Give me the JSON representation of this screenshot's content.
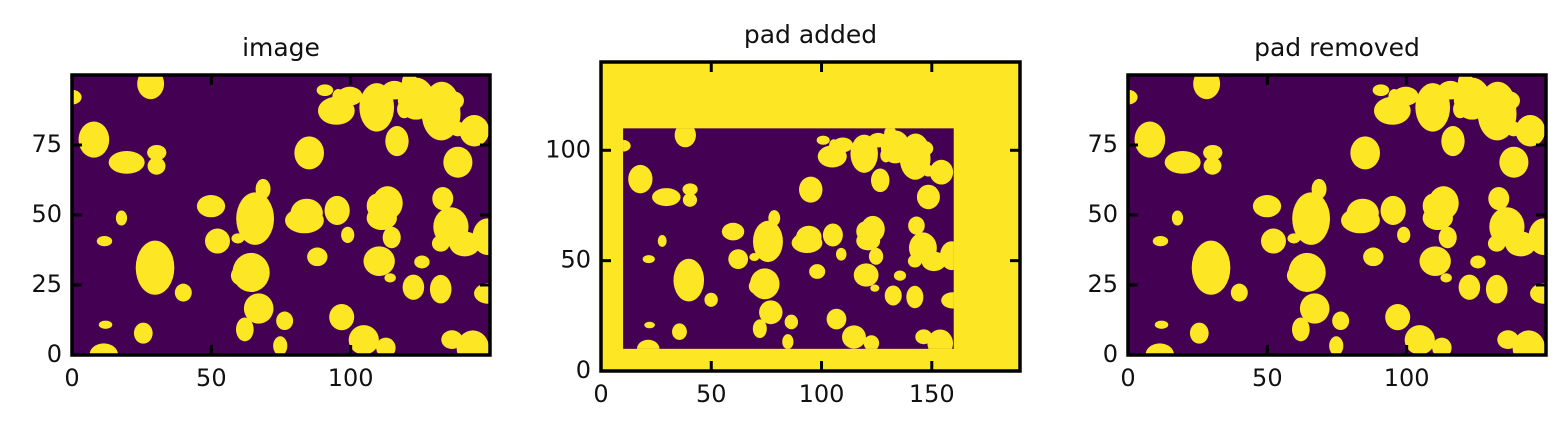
{
  "chart_data": [
    {
      "type": "image",
      "title": "image",
      "xlim": [
        0,
        150
      ],
      "ylim": [
        0,
        100
      ],
      "xticks": [
        0,
        50,
        100
      ],
      "yticks": [
        0,
        25,
        50,
        75
      ]
    },
    {
      "type": "image",
      "title": "pad added",
      "xlim": [
        0,
        190
      ],
      "ylim": [
        0,
        140
      ],
      "xticks": [
        0,
        50,
        100,
        150
      ],
      "yticks": [
        0,
        50,
        100
      ]
    },
    {
      "type": "image",
      "title": "pad removed",
      "xlim": [
        0,
        150
      ],
      "ylim": [
        0,
        100
      ],
      "xticks": [
        0,
        50,
        100
      ],
      "yticks": [
        0,
        25,
        50,
        75
      ]
    }
  ]
}
